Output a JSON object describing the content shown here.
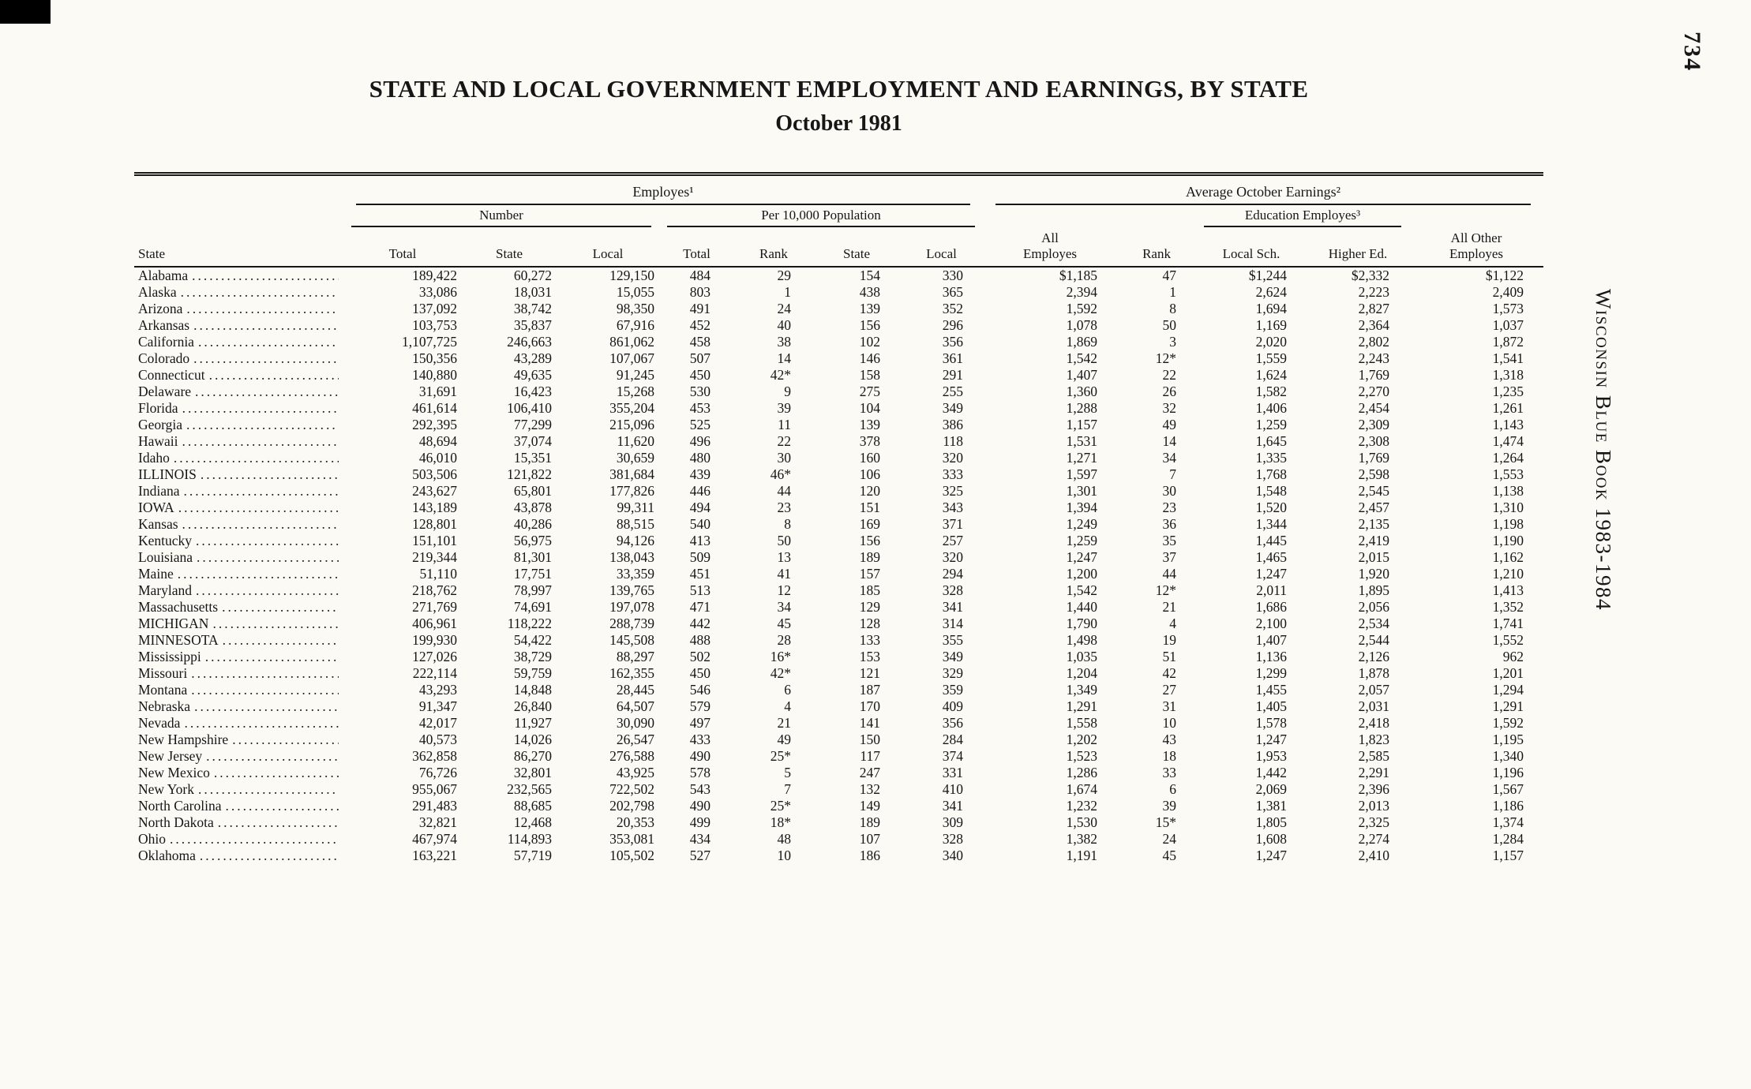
{
  "page": {
    "number": "734",
    "side_text": "Wisconsin Blue Book 1983-1984",
    "title": "STATE AND LOCAL GOVERNMENT EMPLOYMENT AND EARNINGS, BY STATE",
    "subtitle": "October 1981"
  },
  "table": {
    "groups": {
      "employes": "Employes¹",
      "earnings": "Average October Earnings²"
    },
    "subgroups": {
      "number": "Number",
      "per10000": "Per 10,000 Population",
      "education": "Education Employes³"
    },
    "columns": {
      "state": "State",
      "number": [
        "Total",
        "State",
        "Local"
      ],
      "per10000": [
        "Total",
        "Rank",
        "State",
        "Local"
      ],
      "all_employes": [
        "All",
        "Employes"
      ],
      "rank": "Rank",
      "local_sch": "Local Sch.",
      "higher_ed": "Higher Ed.",
      "all_other": [
        "All Other",
        "Employes"
      ]
    },
    "rows": [
      [
        "Alabama",
        "189,422",
        "60,272",
        "129,150",
        "484",
        "29",
        "154",
        "330",
        "$1,185",
        "47",
        "$1,244",
        "$2,332",
        "$1,122"
      ],
      [
        "Alaska",
        "33,086",
        "18,031",
        "15,055",
        "803",
        "1",
        "438",
        "365",
        "2,394",
        "1",
        "2,624",
        "2,223",
        "2,409"
      ],
      [
        "Arizona",
        "137,092",
        "38,742",
        "98,350",
        "491",
        "24",
        "139",
        "352",
        "1,592",
        "8",
        "1,694",
        "2,827",
        "1,573"
      ],
      [
        "Arkansas",
        "103,753",
        "35,837",
        "67,916",
        "452",
        "40",
        "156",
        "296",
        "1,078",
        "50",
        "1,169",
        "2,364",
        "1,037"
      ],
      [
        "California",
        "1,107,725",
        "246,663",
        "861,062",
        "458",
        "38",
        "102",
        "356",
        "1,869",
        "3",
        "2,020",
        "2,802",
        "1,872"
      ],
      [
        "Colorado",
        "150,356",
        "43,289",
        "107,067",
        "507",
        "14",
        "146",
        "361",
        "1,542",
        "12*",
        "1,559",
        "2,243",
        "1,541"
      ],
      [
        "Connecticut",
        "140,880",
        "49,635",
        "91,245",
        "450",
        "42*",
        "158",
        "291",
        "1,407",
        "22",
        "1,624",
        "1,769",
        "1,318"
      ],
      [
        "Delaware",
        "31,691",
        "16,423",
        "15,268",
        "530",
        "9",
        "275",
        "255",
        "1,360",
        "26",
        "1,582",
        "2,270",
        "1,235"
      ],
      [
        "Florida",
        "461,614",
        "106,410",
        "355,204",
        "453",
        "39",
        "104",
        "349",
        "1,288",
        "32",
        "1,406",
        "2,454",
        "1,261"
      ],
      [
        "Georgia",
        "292,395",
        "77,299",
        "215,096",
        "525",
        "11",
        "139",
        "386",
        "1,157",
        "49",
        "1,259",
        "2,309",
        "1,143"
      ],
      [
        "Hawaii",
        "48,694",
        "37,074",
        "11,620",
        "496",
        "22",
        "378",
        "118",
        "1,531",
        "14",
        "1,645",
        "2,308",
        "1,474"
      ],
      [
        "Idaho",
        "46,010",
        "15,351",
        "30,659",
        "480",
        "30",
        "160",
        "320",
        "1,271",
        "34",
        "1,335",
        "1,769",
        "1,264"
      ],
      [
        "ILLINOIS",
        "503,506",
        "121,822",
        "381,684",
        "439",
        "46*",
        "106",
        "333",
        "1,597",
        "7",
        "1,768",
        "2,598",
        "1,553"
      ],
      [
        "Indiana",
        "243,627",
        "65,801",
        "177,826",
        "446",
        "44",
        "120",
        "325",
        "1,301",
        "30",
        "1,548",
        "2,545",
        "1,138"
      ],
      [
        "IOWA",
        "143,189",
        "43,878",
        "99,311",
        "494",
        "23",
        "151",
        "343",
        "1,394",
        "23",
        "1,520",
        "2,457",
        "1,310"
      ],
      [
        "Kansas",
        "128,801",
        "40,286",
        "88,515",
        "540",
        "8",
        "169",
        "371",
        "1,249",
        "36",
        "1,344",
        "2,135",
        "1,198"
      ],
      [
        "Kentucky",
        "151,101",
        "56,975",
        "94,126",
        "413",
        "50",
        "156",
        "257",
        "1,259",
        "35",
        "1,445",
        "2,419",
        "1,190"
      ],
      [
        "Louisiana",
        "219,344",
        "81,301",
        "138,043",
        "509",
        "13",
        "189",
        "320",
        "1,247",
        "37",
        "1,465",
        "2,015",
        "1,162"
      ],
      [
        "Maine",
        "51,110",
        "17,751",
        "33,359",
        "451",
        "41",
        "157",
        "294",
        "1,200",
        "44",
        "1,247",
        "1,920",
        "1,210"
      ],
      [
        "Maryland",
        "218,762",
        "78,997",
        "139,765",
        "513",
        "12",
        "185",
        "328",
        "1,542",
        "12*",
        "2,011",
        "1,895",
        "1,413"
      ],
      [
        "Massachusetts",
        "271,769",
        "74,691",
        "197,078",
        "471",
        "34",
        "129",
        "341",
        "1,440",
        "21",
        "1,686",
        "2,056",
        "1,352"
      ],
      [
        "MICHIGAN",
        "406,961",
        "118,222",
        "288,739",
        "442",
        "45",
        "128",
        "314",
        "1,790",
        "4",
        "2,100",
        "2,534",
        "1,741"
      ],
      [
        "MINNESOTA",
        "199,930",
        "54,422",
        "145,508",
        "488",
        "28",
        "133",
        "355",
        "1,498",
        "19",
        "1,407",
        "2,544",
        "1,552"
      ],
      [
        "Mississippi",
        "127,026",
        "38,729",
        "88,297",
        "502",
        "16*",
        "153",
        "349",
        "1,035",
        "51",
        "1,136",
        "2,126",
        "962"
      ],
      [
        "Missouri",
        "222,114",
        "59,759",
        "162,355",
        "450",
        "42*",
        "121",
        "329",
        "1,204",
        "42",
        "1,299",
        "1,878",
        "1,201"
      ],
      [
        "Montana",
        "43,293",
        "14,848",
        "28,445",
        "546",
        "6",
        "187",
        "359",
        "1,349",
        "27",
        "1,455",
        "2,057",
        "1,294"
      ],
      [
        "Nebraska",
        "91,347",
        "26,840",
        "64,507",
        "579",
        "4",
        "170",
        "409",
        "1,291",
        "31",
        "1,405",
        "2,031",
        "1,291"
      ],
      [
        "Nevada",
        "42,017",
        "11,927",
        "30,090",
        "497",
        "21",
        "141",
        "356",
        "1,558",
        "10",
        "1,578",
        "2,418",
        "1,592"
      ],
      [
        "New Hampshire",
        "40,573",
        "14,026",
        "26,547",
        "433",
        "49",
        "150",
        "284",
        "1,202",
        "43",
        "1,247",
        "1,823",
        "1,195"
      ],
      [
        "New Jersey",
        "362,858",
        "86,270",
        "276,588",
        "490",
        "25*",
        "117",
        "374",
        "1,523",
        "18",
        "1,953",
        "2,585",
        "1,340"
      ],
      [
        "New Mexico",
        "76,726",
        "32,801",
        "43,925",
        "578",
        "5",
        "247",
        "331",
        "1,286",
        "33",
        "1,442",
        "2,291",
        "1,196"
      ],
      [
        "New York",
        "955,067",
        "232,565",
        "722,502",
        "543",
        "7",
        "132",
        "410",
        "1,674",
        "6",
        "2,069",
        "2,396",
        "1,567"
      ],
      [
        "North Carolina",
        "291,483",
        "88,685",
        "202,798",
        "490",
        "25*",
        "149",
        "341",
        "1,232",
        "39",
        "1,381",
        "2,013",
        "1,186"
      ],
      [
        "North Dakota",
        "32,821",
        "12,468",
        "20,353",
        "499",
        "18*",
        "189",
        "309",
        "1,530",
        "15*",
        "1,805",
        "2,325",
        "1,374"
      ],
      [
        "Ohio",
        "467,974",
        "114,893",
        "353,081",
        "434",
        "48",
        "107",
        "328",
        "1,382",
        "24",
        "1,608",
        "2,274",
        "1,284"
      ],
      [
        "Oklahoma",
        "163,221",
        "57,719",
        "105,502",
        "527",
        "10",
        "186",
        "340",
        "1,191",
        "45",
        "1,247",
        "2,410",
        "1,157"
      ]
    ]
  }
}
